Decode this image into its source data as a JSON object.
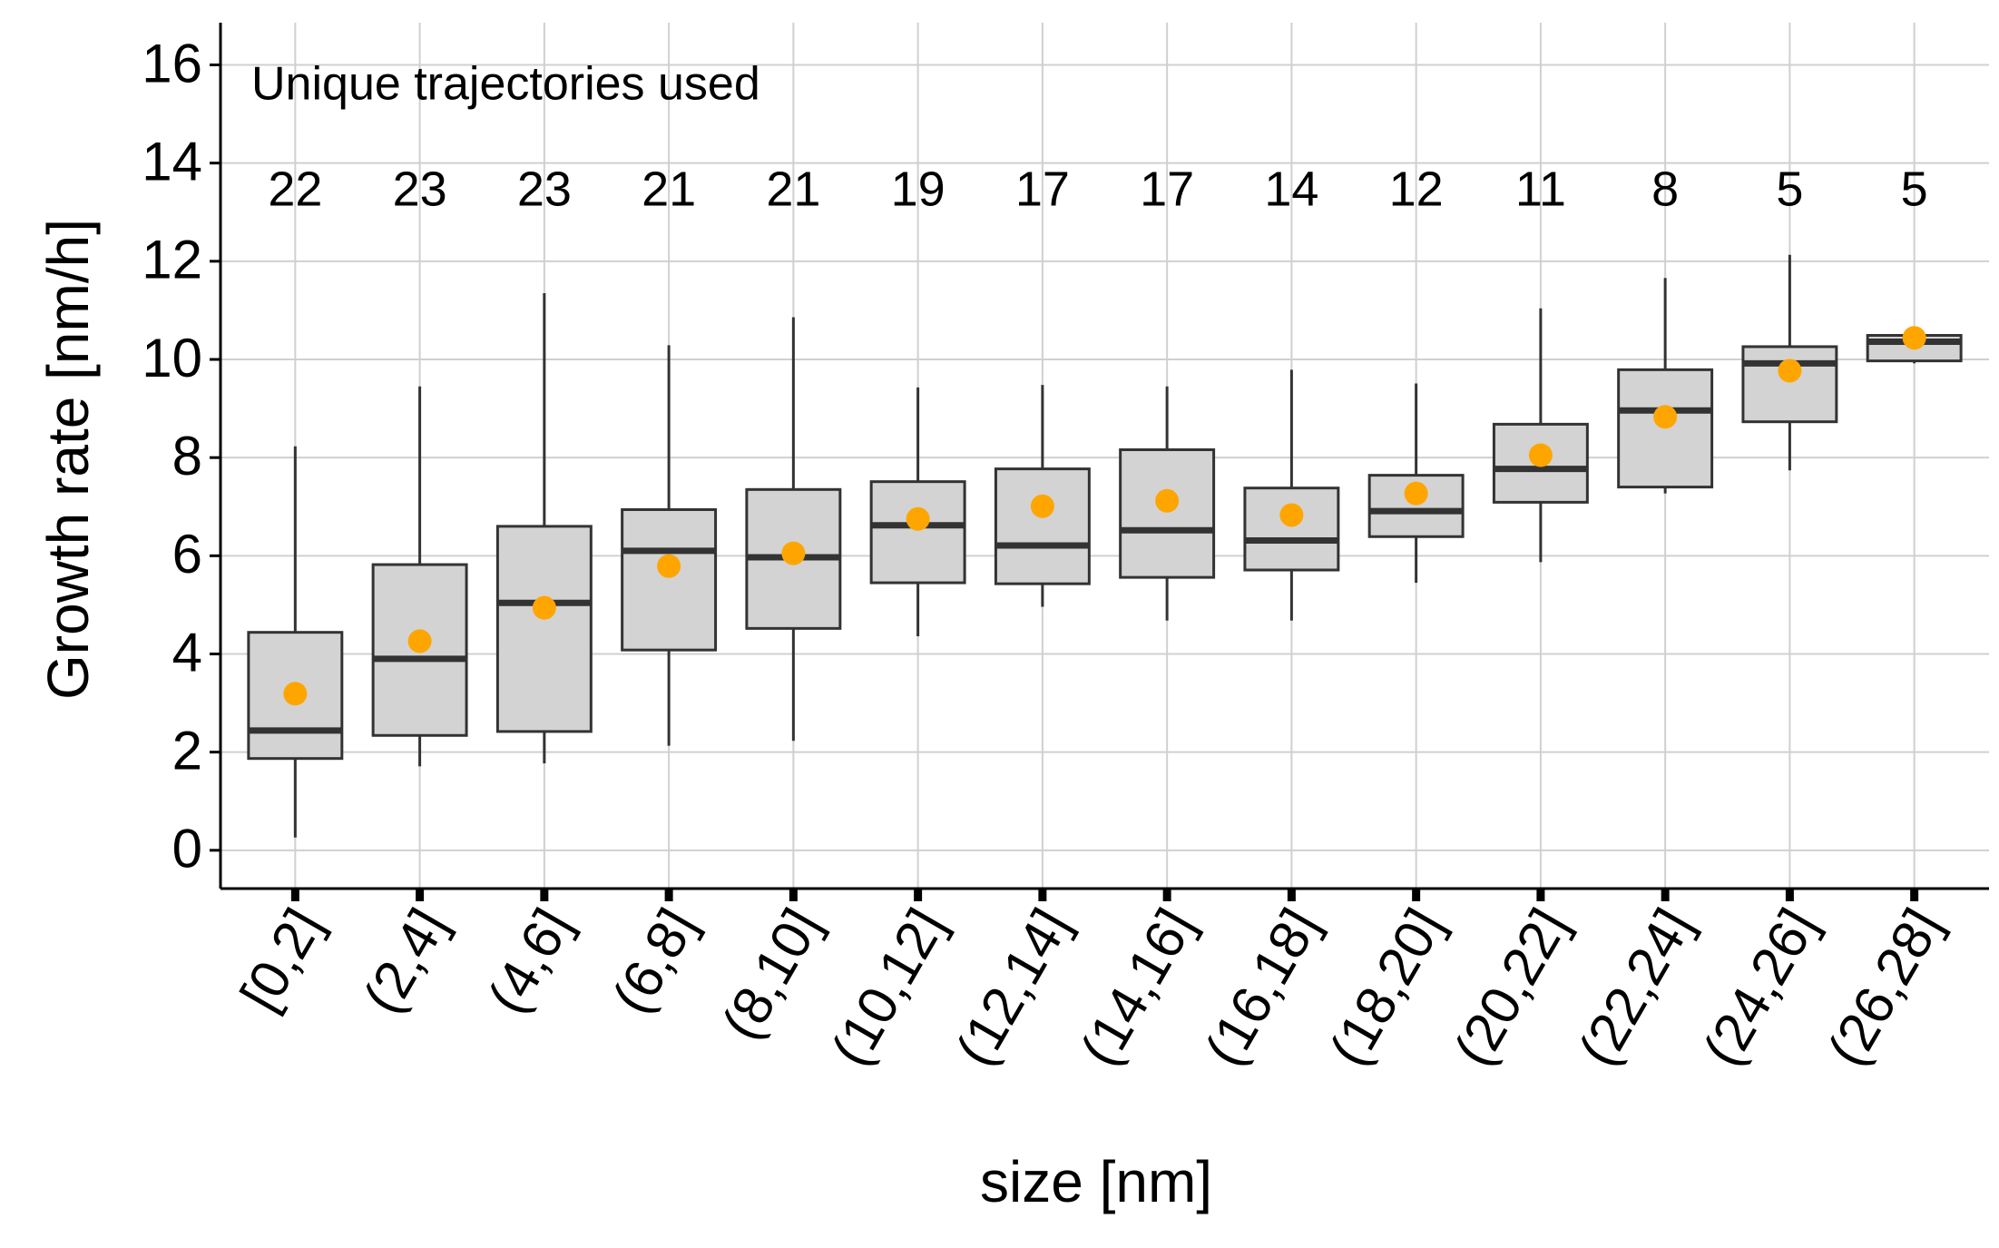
{
  "chart_data": {
    "type": "box",
    "xlabel": "size [nm]",
    "ylabel": "Growth rate [nm/h]",
    "annotation": "Unique trajectories used",
    "annotation_counts": [
      22,
      23,
      23,
      21,
      21,
      19,
      17,
      17,
      14,
      12,
      11,
      8,
      5,
      5
    ],
    "annotation_color": "#ff0000",
    "categories": [
      "[0,2]",
      "(2,4]",
      "(4,6]",
      "(6,8]",
      "(8,10]",
      "(10,12]",
      "(12,14]",
      "(14,16]",
      "(16,18]",
      "(18,20]",
      "(20,22]",
      "(22,24]",
      "(24,26]",
      "(26,28]"
    ],
    "box_color": "#d3d3d3",
    "mean_color": "#ffa500",
    "whislo": [
      0.26,
      1.71,
      1.77,
      2.13,
      2.23,
      4.36,
      4.96,
      4.68,
      4.68,
      5.45,
      5.87,
      7.27,
      7.74,
      9.92
    ],
    "q1": [
      1.87,
      2.34,
      2.42,
      4.08,
      4.52,
      5.45,
      5.43,
      5.56,
      5.71,
      6.39,
      7.09,
      7.4,
      8.73,
      9.97
    ],
    "median": [
      2.44,
      3.9,
      5.04,
      6.1,
      5.97,
      6.62,
      6.21,
      6.52,
      6.31,
      6.91,
      7.77,
      8.96,
      9.92,
      10.36
    ],
    "q3": [
      4.44,
      5.82,
      6.6,
      6.94,
      7.35,
      7.51,
      7.77,
      8.16,
      7.38,
      7.64,
      8.68,
      9.79,
      10.26,
      10.49
    ],
    "whishi": [
      8.23,
      9.45,
      11.35,
      10.29,
      10.86,
      9.43,
      9.48,
      9.45,
      9.79,
      9.51,
      11.04,
      11.66,
      12.13,
      10.52
    ],
    "mean": [
      3.19,
      4.26,
      4.94,
      5.79,
      6.05,
      6.75,
      7.01,
      7.12,
      6.83,
      7.27,
      8.05,
      8.83,
      9.77,
      10.44
    ],
    "ylim": [
      -0.78,
      16.86
    ],
    "yticks": [
      0,
      2,
      4,
      6,
      8,
      10,
      12,
      14,
      16
    ],
    "grid": true
  }
}
